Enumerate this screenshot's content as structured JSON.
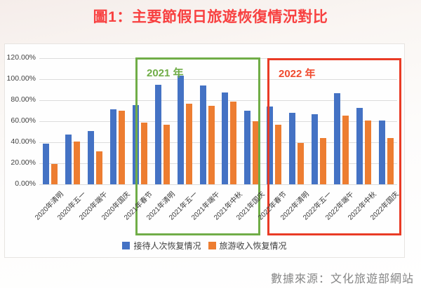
{
  "page": {
    "title": "圖1：主要節假日旅遊恢復情況對比",
    "source": "數據來源：文化旅遊部網站"
  },
  "chart_data": {
    "type": "bar",
    "title": "圖1：主要節假日旅遊恢復情況對比",
    "categories": [
      "2020年清明",
      "2020年五一",
      "2020年端午",
      "2020年国庆",
      "2021年春节",
      "2021年清明",
      "2021年五一",
      "2021年端午",
      "2021年中秋",
      "2021年国庆",
      "2022年春节",
      "2022年清明",
      "2022年五一",
      "2022年端午",
      "2022年中秋",
      "2022年国庆"
    ],
    "series": [
      {
        "name": "接待人次恢复情况",
        "color": "#4472C4",
        "values": [
          38.5,
          47.5,
          51.0,
          71.5,
          75.5,
          94.5,
          103.5,
          94.0,
          87.5,
          70.0,
          74.0,
          68.0,
          67.0,
          87.0,
          73.0,
          61.0
        ]
      },
      {
        "name": "旅游收入恢复情况",
        "color": "#ED7D31",
        "values": [
          19.5,
          40.5,
          31.5,
          70.0,
          58.5,
          56.5,
          77.0,
          75.0,
          78.5,
          60.0,
          56.5,
          39.5,
          44.0,
          65.5,
          61.0,
          44.0
        ]
      }
    ],
    "y_ticks": [
      "120.00%",
      "100.00%",
      "80.00%",
      "60.00%",
      "40.00%",
      "20.00%",
      "0.00%"
    ],
    "ylim": [
      0,
      120
    ],
    "unit": "%",
    "grid": true,
    "legend_position": "bottom",
    "annotations": [
      {
        "label": "2021 年",
        "color": "#70AD47",
        "from": "2021年春节",
        "to": "2021年国庆"
      },
      {
        "label": "2022 年",
        "color": "#E93B25",
        "from": "2022年春节",
        "to": "2022年国庆"
      }
    ]
  }
}
